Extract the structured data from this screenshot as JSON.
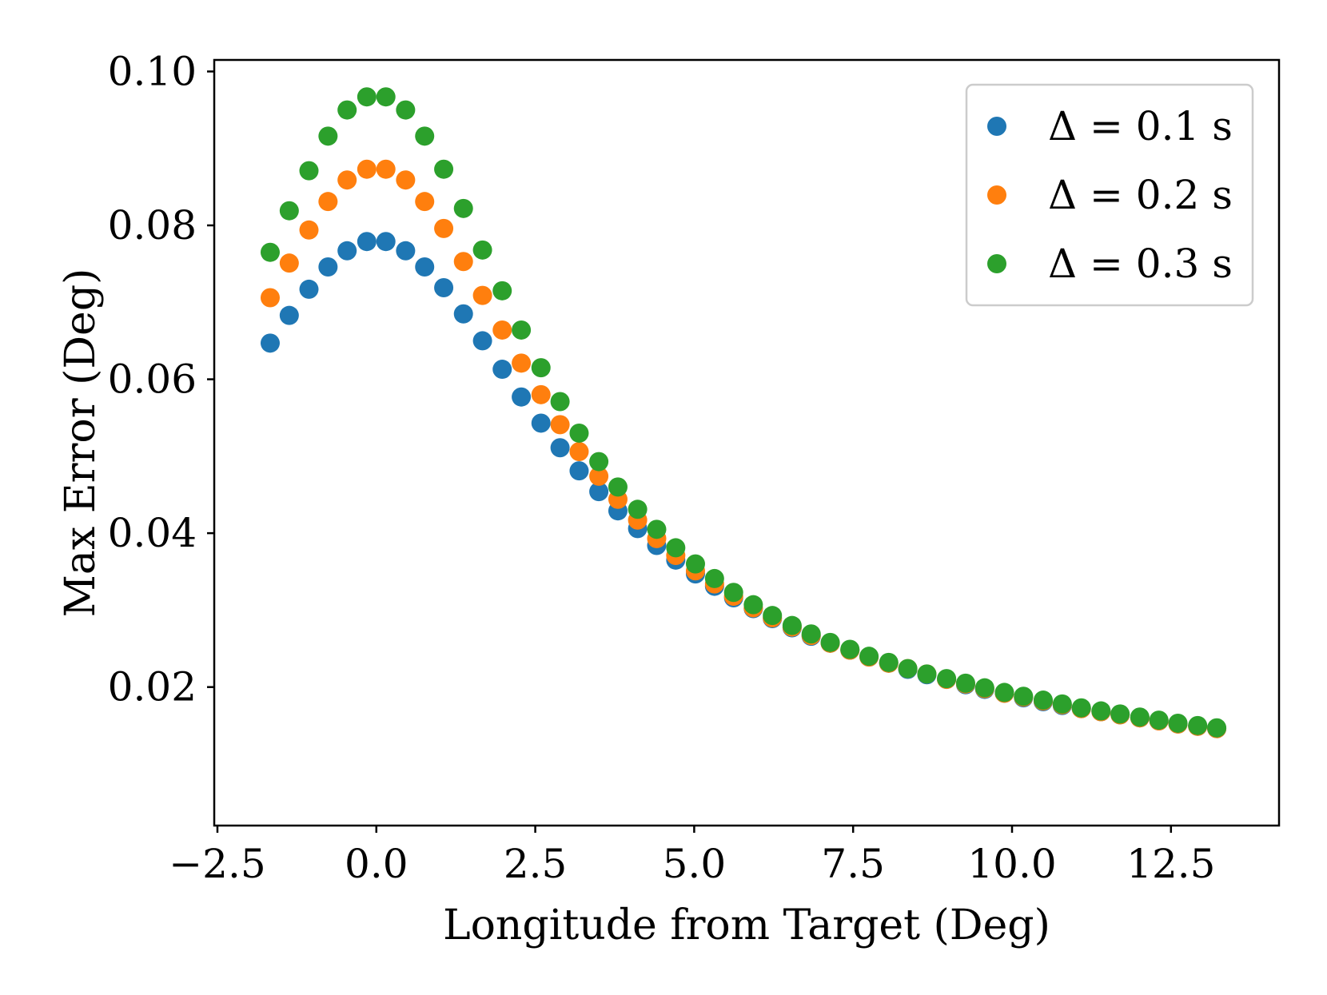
{
  "chart_data": {
    "type": "scatter",
    "title": "",
    "xlabel": "Longitude from Target (Deg)",
    "ylabel": "Max Error (Deg)",
    "xlim": [
      -2.55,
      14.2
    ],
    "ylim": [
      0.002,
      0.1015
    ],
    "xticks": [
      -2.5,
      0.0,
      2.5,
      5.0,
      7.5,
      10.0,
      12.5
    ],
    "xtick_labels": [
      "−2.5",
      "0.0",
      "2.5",
      "5.0",
      "7.5",
      "10.0",
      "12.5"
    ],
    "yticks": [
      0.02,
      0.04,
      0.06,
      0.08,
      0.1
    ],
    "ytick_labels": [
      "0.02",
      "0.04",
      "0.06",
      "0.08",
      "0.10"
    ],
    "grid": false,
    "legend_position": "top-right",
    "x": [
      -1.67,
      -1.37,
      -1.06,
      -0.76,
      -0.46,
      -0.15,
      0.15,
      0.46,
      0.76,
      1.06,
      1.37,
      1.67,
      1.98,
      2.28,
      2.59,
      2.89,
      3.19,
      3.5,
      3.8,
      4.11,
      4.41,
      4.71,
      5.02,
      5.32,
      5.62,
      5.93,
      6.23,
      6.54,
      6.84,
      7.14,
      7.45,
      7.75,
      8.06,
      8.36,
      8.66,
      8.97,
      9.27,
      9.57,
      9.88,
      10.18,
      10.49,
      10.79,
      11.09,
      11.4,
      11.7,
      12.01,
      12.31,
      12.61,
      12.92,
      13.22
    ],
    "series": [
      {
        "name": "Δ = 0.1 s",
        "color": "#1f77b4",
        "values": [
          0.0647,
          0.0683,
          0.0717,
          0.0746,
          0.0767,
          0.0779,
          0.0779,
          0.0767,
          0.0746,
          0.0719,
          0.0685,
          0.065,
          0.0613,
          0.0577,
          0.0543,
          0.0511,
          0.0481,
          0.0454,
          0.0429,
          0.0406,
          0.0384,
          0.0365,
          0.0347,
          0.0331,
          0.0316,
          0.0302,
          0.0289,
          0.0277,
          0.0266,
          0.0257,
          0.0248,
          0.0239,
          0.0231,
          0.0223,
          0.0216,
          0.021,
          0.0203,
          0.0197,
          0.0192,
          0.0186,
          0.0181,
          0.0176,
          0.0172,
          0.0168,
          0.0164,
          0.016,
          0.0156,
          0.0152,
          0.0149,
          0.0146
        ]
      },
      {
        "name": "Δ = 0.2 s",
        "color": "#ff7f0e",
        "values": [
          0.0706,
          0.0751,
          0.0794,
          0.0831,
          0.0859,
          0.0873,
          0.0873,
          0.0859,
          0.0831,
          0.0796,
          0.0753,
          0.0709,
          0.0664,
          0.0621,
          0.058,
          0.0541,
          0.0506,
          0.0474,
          0.0444,
          0.0417,
          0.0393,
          0.0371,
          0.0351,
          0.0334,
          0.0318,
          0.0303,
          0.029,
          0.0278,
          0.0267,
          0.0257,
          0.0248,
          0.0239,
          0.0231,
          0.0224,
          0.0217,
          0.021,
          0.0204,
          0.0198,
          0.0192,
          0.0187,
          0.0182,
          0.0177,
          0.0172,
          0.0168,
          0.0164,
          0.016,
          0.0156,
          0.0152,
          0.0149,
          0.0146
        ]
      },
      {
        "name": "Δ = 0.3 s",
        "color": "#2ca02c",
        "values": [
          0.0765,
          0.0819,
          0.0871,
          0.0916,
          0.095,
          0.0967,
          0.0967,
          0.095,
          0.0916,
          0.0873,
          0.0822,
          0.0768,
          0.0715,
          0.0664,
          0.0615,
          0.0571,
          0.053,
          0.0493,
          0.046,
          0.0431,
          0.0405,
          0.0381,
          0.036,
          0.0341,
          0.0323,
          0.0307,
          0.0293,
          0.028,
          0.0269,
          0.0258,
          0.0249,
          0.024,
          0.0232,
          0.0224,
          0.0217,
          0.0211,
          0.0205,
          0.0199,
          0.0193,
          0.0188,
          0.0183,
          0.0178,
          0.0173,
          0.0169,
          0.0165,
          0.0161,
          0.0157,
          0.0153,
          0.015,
          0.0147
        ]
      }
    ]
  },
  "legend": {
    "items": [
      {
        "label": "Δ = 0.1 s",
        "color": "#1f77b4"
      },
      {
        "label": "Δ = 0.2 s",
        "color": "#ff7f0e"
      },
      {
        "label": "Δ = 0.3 s",
        "color": "#2ca02c"
      }
    ]
  }
}
